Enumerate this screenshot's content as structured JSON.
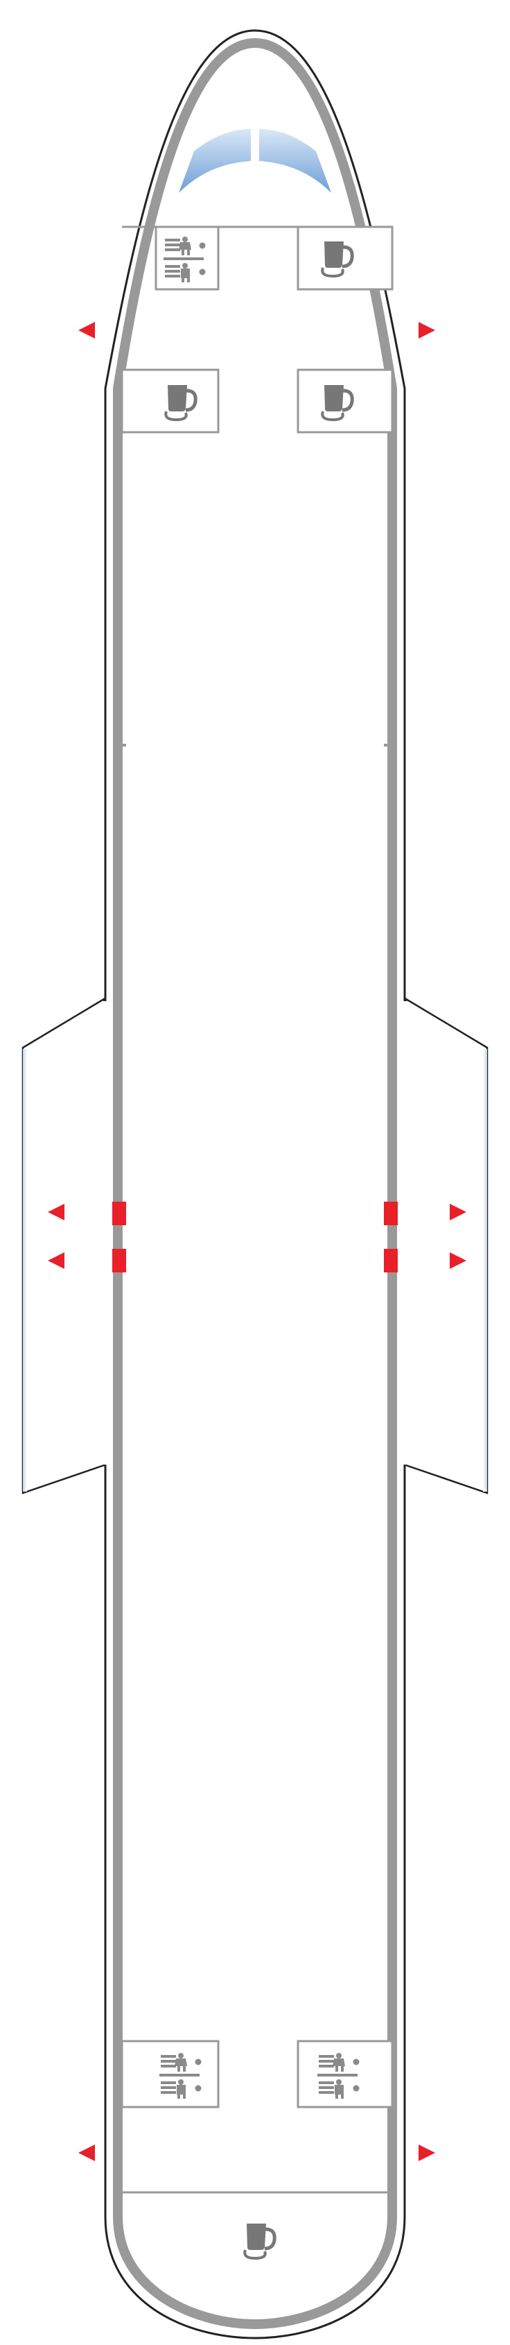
{
  "aircraft": {
    "fuselage_colors": {
      "outline": "#222222",
      "wall": "#999999",
      "window": "#9ec3e6"
    },
    "exit_color": "#e8202a",
    "facility_icons": {
      "lavatory": "lavatory-icon",
      "galley": "galley-cup-icon"
    },
    "exits": {
      "front_left": "exit-arrow-icon",
      "front_right": "exit-arrow-icon",
      "overwing": "exit-arrow-icon",
      "rear_left": "exit-arrow-icon",
      "rear_right": "exit-arrow-icon"
    }
  }
}
